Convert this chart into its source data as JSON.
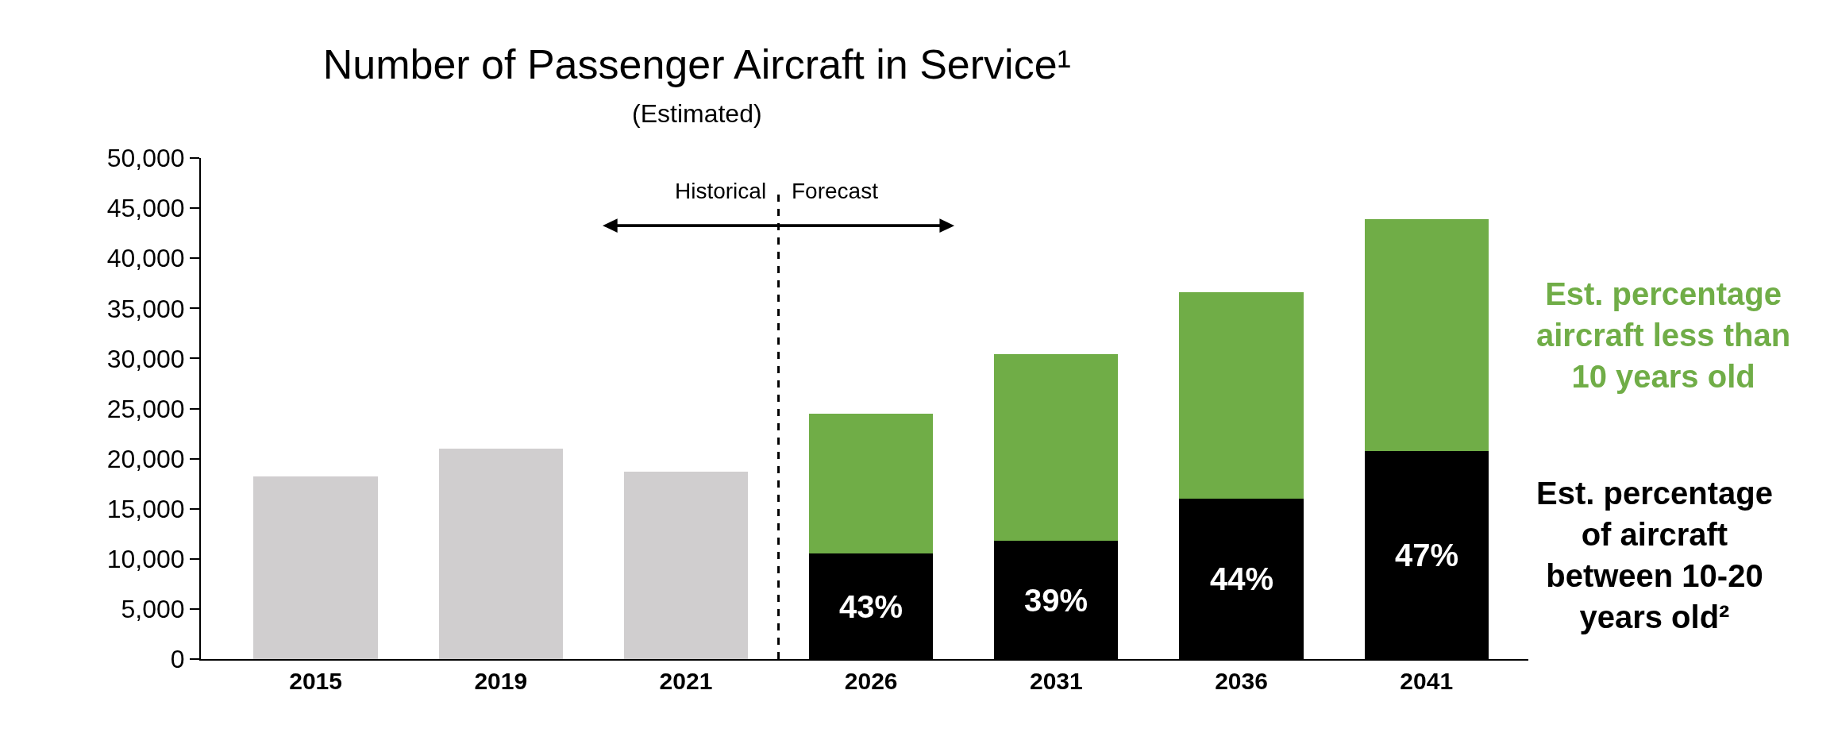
{
  "chart_data": {
    "type": "bar",
    "title": "Number of Passenger Aircraft in Service¹",
    "subtitle": "(Estimated)",
    "categories": [
      "2015",
      "2019",
      "2021",
      "2026",
      "2031",
      "2036",
      "2041"
    ],
    "stacked": true,
    "series": [
      {
        "color": "#d0cecf",
        "values": [
          18200,
          21000,
          18700,
          null,
          null,
          null,
          null
        ]
      },
      {
        "name": "Est. percentage of aircraft between 10-20 years old²",
        "color": "#000000",
        "values": [
          null,
          null,
          null,
          10500,
          11800,
          16000,
          20800
        ]
      },
      {
        "name": "Est. percentage aircraft less than 10 years old",
        "color": "#70ad47",
        "values": [
          null,
          null,
          null,
          14000,
          18600,
          20600,
          23100
        ]
      }
    ],
    "ylim": [
      0,
      50000
    ],
    "yticks": [
      {
        "value": 0,
        "label": "0"
      },
      {
        "value": 5000,
        "label": "5,000"
      },
      {
        "value": 10000,
        "label": "10,000"
      },
      {
        "value": 15000,
        "label": "15,000"
      },
      {
        "value": 20000,
        "label": "20,000"
      },
      {
        "value": 25000,
        "label": "25,000"
      },
      {
        "value": 30000,
        "label": "30,000"
      },
      {
        "value": 35000,
        "label": "35,000"
      },
      {
        "value": 40000,
        "label": "40,000"
      },
      {
        "value": 45000,
        "label": "45,000"
      },
      {
        "value": 50000,
        "label": "50,000"
      }
    ],
    "annotations": [
      "Historical",
      "Forecast",
      "43%",
      "39%",
      "44%",
      "47%"
    ]
  }
}
